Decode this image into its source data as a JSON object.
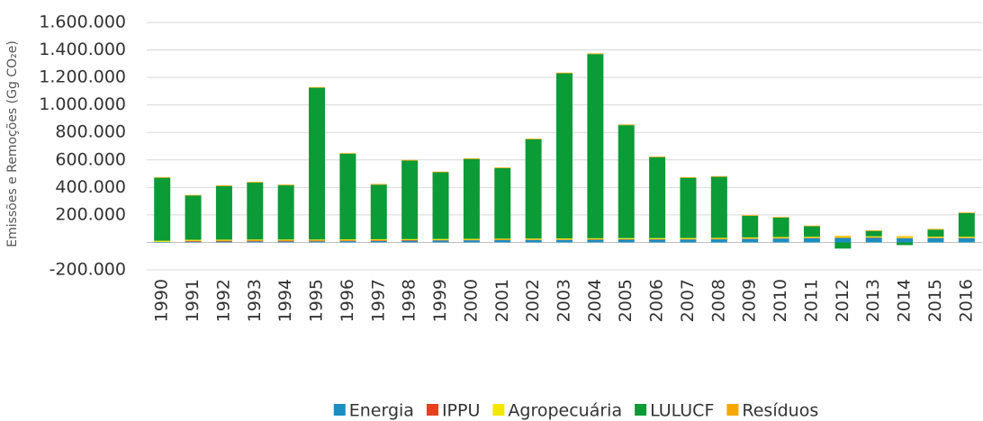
{
  "chart_data": {
    "type": "stacked_bar",
    "y_label": "Emissões e Remoções (Gg CO₂e)",
    "categories": [
      "1990",
      "1991",
      "1992",
      "1993",
      "1994",
      "1995",
      "1996",
      "1997",
      "1998",
      "1999",
      "2000",
      "2001",
      "2002",
      "2003",
      "2004",
      "2005",
      "2006",
      "2007",
      "2008",
      "2009",
      "2010",
      "2011",
      "2012",
      "2013",
      "2014",
      "2015",
      "2016"
    ],
    "series": [
      {
        "name": "Energia",
        "color": "#1b8ec2",
        "values": [
          3000,
          5000,
          6000,
          7000,
          7000,
          8000,
          9000,
          10000,
          12000,
          14000,
          15000,
          16000,
          17000,
          18000,
          19000,
          20000,
          20000,
          21000,
          22000,
          25000,
          28000,
          30000,
          32000,
          33000,
          30000,
          31000,
          30000
        ]
      },
      {
        "name": "IPPU",
        "color": "#e8401c",
        "values": [
          1000,
          6000,
          6000,
          6000,
          6000,
          5000,
          5000,
          5000,
          4000,
          3000,
          3000,
          3000,
          3000,
          3000,
          3000,
          3000,
          3000,
          3000,
          3000,
          3000,
          3000,
          3000,
          3000,
          3000,
          3000,
          3000,
          3000
        ]
      },
      {
        "name": "Agropecuária",
        "color": "#f3e600",
        "values": [
          8000,
          8000,
          8000,
          8000,
          8000,
          8000,
          8000,
          8000,
          8000,
          8000,
          8000,
          8000,
          8000,
          8000,
          8000,
          8000,
          8000,
          8000,
          8000,
          8000,
          8000,
          8000,
          8000,
          8000,
          8000,
          8000,
          8000
        ]
      },
      {
        "name": "LULUCF",
        "color": "#0b9b37",
        "values": [
          458000,
          321000,
          390000,
          414000,
          394000,
          1104000,
          623000,
          397000,
          571000,
          485000,
          581000,
          513000,
          722000,
          1201000,
          1340000,
          822000,
          589000,
          438000,
          444000,
          157000,
          141000,
          76000,
          -45000,
          39000,
          -20000,
          51000,
          172000
        ]
      },
      {
        "name": "Resíduos",
        "color": "#f6a800",
        "values": [
          5000,
          5000,
          5000,
          5000,
          5000,
          5000,
          5000,
          5000,
          5000,
          5000,
          5000,
          5000,
          5000,
          5000,
          5000,
          5000,
          5000,
          5000,
          5000,
          5000,
          5000,
          5000,
          5000,
          5000,
          5000,
          5000,
          5000
        ]
      }
    ],
    "ylim": [
      -200000,
      1600000
    ],
    "yticks": [
      {
        "value": -200000,
        "label": "-200.000"
      },
      {
        "value": 200000,
        "label": "200.000"
      },
      {
        "value": 400000,
        "label": "400.000"
      },
      {
        "value": 600000,
        "label": "600.000"
      },
      {
        "value": 800000,
        "label": "800.000"
      },
      {
        "value": 1000000,
        "label": "1.000.000"
      },
      {
        "value": 1200000,
        "label": "1.200.000"
      },
      {
        "value": 1400000,
        "label": "1.400.000"
      },
      {
        "value": 1600000,
        "label": "1.600.000"
      }
    ],
    "grid": true,
    "legend": "bottom"
  }
}
